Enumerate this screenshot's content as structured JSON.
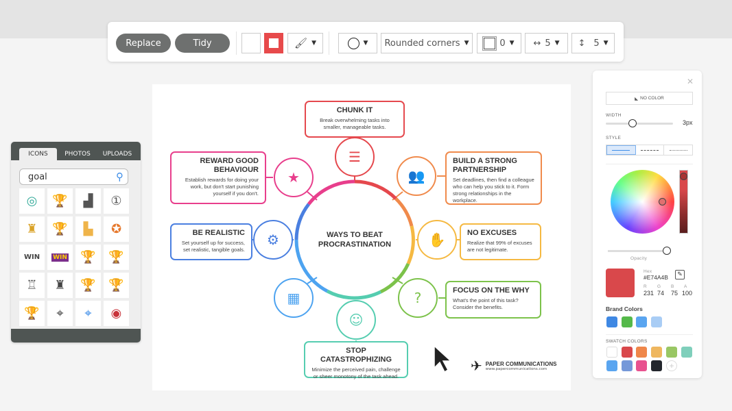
{
  "toolbar": {
    "replace": "Replace",
    "tidy": "Tidy",
    "fill_color": "#ffffff",
    "stroke_color": "#e74a4b",
    "shape": "circle",
    "corners": "Rounded corners",
    "border_value": "0",
    "h_spacing": "5",
    "v_spacing": "5"
  },
  "icons_panel": {
    "tabs": [
      "ICONS",
      "PHOTOS",
      "UPLOADS"
    ],
    "active_tab": "ICONS",
    "search_value": "goal",
    "results": [
      "target-icon",
      "gold-trophy-icon",
      "podium-icon",
      "medal-icon",
      "world-cup-icon",
      "gold-cup-icon",
      "color-podium-icon",
      "award-ribbon-icon",
      "win-siren-icon",
      "win-badge-icon",
      "trophy-icon",
      "trophy-icon",
      "world-cup-outline-icon",
      "world-cup-icon",
      "trophy-icon",
      "trophy-outline-icon",
      "trophy-icon",
      "crosshair-icon",
      "crosshair-blue-icon",
      "dartboard-icon"
    ]
  },
  "infographic": {
    "center": "WAYS TO BEAT PROCRASTINATION",
    "items": [
      {
        "title": "CHUNK IT",
        "text": "Break overwhelming tasks into smaller, manageable tasks.",
        "color": "#e5484d",
        "icon": "checklist-icon"
      },
      {
        "title": "REWARD GOOD BEHAVIOUR",
        "text": "Establish rewards for doing your work, but don't start punishing yourself if you don't.",
        "color": "#e83e8c",
        "icon": "trophy-star-icon"
      },
      {
        "title": "BUILD A STRONG PARTNERSHIP",
        "text": "Set deadlines, then find a colleague who can help you stick to it. Form strong relationships in the workplace.",
        "color": "#f08a4b",
        "icon": "partners-icon"
      },
      {
        "title": "BE REALISTIC",
        "text": "Set yourself up for success, set realistic, tangible goals.",
        "color": "#4a7fe0",
        "icon": "gears-icon"
      },
      {
        "title": "NO EXCUSES",
        "text": "Realize that 99% of excuses are not legitimate.",
        "color": "#f5b942",
        "icon": "hand-icon"
      },
      {
        "title": "FOCUS ON THE WHY",
        "text": "What's the point of this task? Consider the benefits.",
        "color": "#7cc24a",
        "icon": "question-head-icon"
      },
      {
        "title": "STOP CATASTROPHIZING",
        "text": "Minimize the perceived pain, challenge or sheer monotony of the task ahead.",
        "color": "#55cdb0",
        "icon": "face-palm-icon"
      }
    ],
    "calendar_color": "#4da3f0",
    "brand": "PAPER COMMUNICATIONS",
    "url": "www.papercommunications.com"
  },
  "color_panel": {
    "no_color": "NO COLOR",
    "width_label": "WIDTH",
    "width_value": "3px",
    "width_fraction": 0.35,
    "style_label": "STYLE",
    "styles": [
      "solid",
      "dashed",
      "dotted"
    ],
    "active_style": "solid",
    "opacity_label": "Opacity",
    "opacity_fraction": 0.95,
    "hex_label": "Hex",
    "hex": "#E74A4B",
    "r_label": "R",
    "g_label": "G",
    "b_label": "B",
    "a_label": "A",
    "r": "231",
    "g": "74",
    "b": "75",
    "a": "100",
    "brand_label": "Brand Colors",
    "brand_colors": [
      "#3f88e3",
      "#55b94a",
      "#5aa5f0",
      "#a9cdf5"
    ],
    "swatch_label": "SWATCH COLORS",
    "swatches": [
      "#ffffff",
      "#d9484b",
      "#ef874a",
      "#efb75f",
      "#99c764",
      "#7fcfbb",
      "#5aa5f0",
      "#7598d9",
      "#e8528f",
      "#22262c"
    ]
  }
}
